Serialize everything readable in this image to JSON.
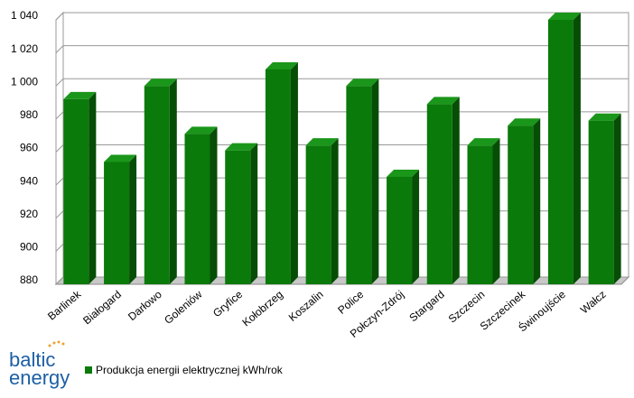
{
  "chart_data": {
    "type": "bar3d",
    "categories": [
      "Barlinek",
      "Białogard",
      "Darłowo",
      "Goleniów",
      "Gryfice",
      "Kołobrzeg",
      "Koszalin",
      "Police",
      "Połczyn-Zdrój",
      "Stargard",
      "Szczecin",
      "Szczecinek",
      "Świnoujście",
      "Wałcz"
    ],
    "series": [
      {
        "name": "Produkcja energii elektrycznej kWh/rok",
        "color": "#0a7a0a",
        "values": [
          992,
          954,
          1000,
          971,
          961,
          1010,
          964,
          1000,
          945,
          989,
          964,
          976,
          1040,
          979
        ]
      }
    ],
    "ylim": [
      880,
      1040
    ],
    "yticks": [
      880,
      900,
      920,
      940,
      960,
      980,
      {
        "value": 1000,
        "label": "1 000"
      },
      {
        "value": 1020,
        "label": "1 020"
      },
      {
        "value": 1040,
        "label": "1 040"
      }
    ],
    "grid": true,
    "legend": "bottom",
    "logo": {
      "line1": "baltic",
      "line2": "energy"
    }
  }
}
